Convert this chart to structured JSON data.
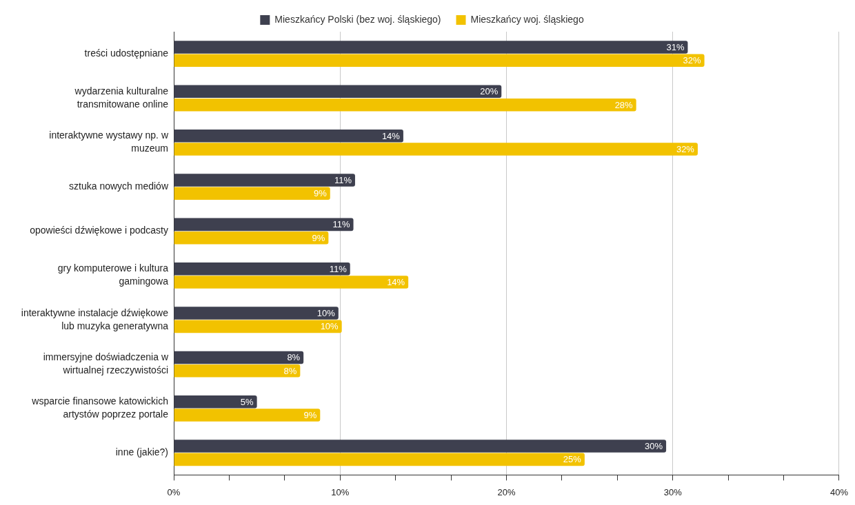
{
  "chart_data": {
    "type": "bar",
    "orientation": "horizontal",
    "categories": [
      "treści udostępniane",
      "wydarzenia kulturalne transmitowane online",
      "interaktywne wystawy np. w muzeum",
      "sztuka nowych mediów",
      "opowieści dźwiękowe i podcasty",
      "gry komputerowe i kultura gamingowa",
      "interaktywne instalacje dźwiękowe lub muzyka generatywna",
      "immersyjne doświadczenia w wirtualnej rzeczywistości",
      "wsparcie finansowe katowickich artystów poprzez portale",
      "inne (jakie?)"
    ],
    "series": [
      {
        "name": "Mieszkańcy Polski (bez woj. śląskiego)",
        "color": "#3e404f",
        "values": [
          30.9,
          19.7,
          13.8,
          10.9,
          10.8,
          10.6,
          9.9,
          7.8,
          5.0,
          29.6
        ],
        "value_labels": [
          "31%",
          "20%",
          "14%",
          "11%",
          "11%",
          "11%",
          "10%",
          "8%",
          "5%",
          "30%"
        ]
      },
      {
        "name": "Mieszkańcy woj. śląskiego",
        "color": "#f2c200",
        "values": [
          31.9,
          27.8,
          31.5,
          9.4,
          9.3,
          14.1,
          10.1,
          7.6,
          8.8,
          24.7
        ],
        "value_labels": [
          "32%",
          "28%",
          "32%",
          "9%",
          "9%",
          "14%",
          "10%",
          "8%",
          "9%",
          "25%"
        ]
      }
    ],
    "xlim": [
      0,
      40
    ],
    "xticks": [
      {
        "value": 0,
        "label": "0%"
      },
      {
        "value": 3.33,
        "label": null
      },
      {
        "value": 6.67,
        "label": null
      },
      {
        "value": 10,
        "label": "10%"
      },
      {
        "value": 13.33,
        "label": null
      },
      {
        "value": 16.67,
        "label": null
      },
      {
        "value": 20,
        "label": "20%"
      },
      {
        "value": 23.33,
        "label": null
      },
      {
        "value": 26.67,
        "label": null
      },
      {
        "value": 30,
        "label": "30%"
      },
      {
        "value": 33.33,
        "label": null
      },
      {
        "value": 36.67,
        "label": null
      },
      {
        "value": 40,
        "label": "40%"
      }
    ],
    "grid": "x",
    "legend": "top"
  }
}
